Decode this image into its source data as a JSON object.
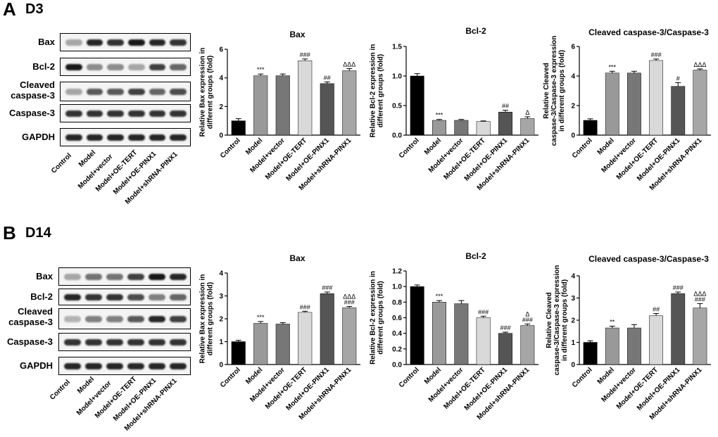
{
  "panels": [
    {
      "letter": "A",
      "day": "D3"
    },
    {
      "letter": "B",
      "day": "D14"
    }
  ],
  "blots": [
    {
      "rows": [
        "Bax",
        "Bcl-2",
        "Cleaved caspase-3",
        "Caspase-3",
        "GAPDH"
      ],
      "lanes": [
        "Control",
        "Model",
        "Model+vector",
        "Model+OE-TERT",
        "Model+OE-PINX1",
        "Model+shRNA-PINX1"
      ],
      "intensity": [
        [
          0.35,
          0.85,
          0.8,
          0.9,
          0.85,
          0.8
        ],
        [
          0.9,
          0.45,
          0.45,
          0.35,
          0.75,
          0.6
        ],
        [
          0.35,
          0.65,
          0.65,
          0.75,
          0.6,
          0.7
        ],
        [
          0.8,
          0.8,
          0.8,
          0.8,
          0.8,
          0.8
        ],
        [
          0.85,
          0.85,
          0.85,
          0.85,
          0.85,
          0.85
        ]
      ]
    },
    {
      "rows": [
        "Bax",
        "Bcl-2",
        "Cleaved caspase-3",
        "Caspase-3",
        "GAPDH"
      ],
      "lanes": [
        "Control",
        "Model",
        "Model+vector",
        "Model+OE-TERT",
        "Model+OE-PINX1",
        "Model+shRNA-PINX1"
      ],
      "intensity": [
        [
          0.35,
          0.55,
          0.55,
          0.75,
          0.9,
          0.85
        ],
        [
          0.85,
          0.8,
          0.8,
          0.7,
          0.5,
          0.6
        ],
        [
          0.3,
          0.5,
          0.5,
          0.65,
          0.85,
          0.75
        ],
        [
          0.8,
          0.8,
          0.8,
          0.8,
          0.8,
          0.8
        ],
        [
          0.85,
          0.85,
          0.85,
          0.85,
          0.85,
          0.85
        ]
      ]
    }
  ],
  "chart_data": [
    {
      "type": "bar",
      "title": "Bax",
      "ylabel": "Relative Bax expression in different groups (fold)",
      "categories": [
        "Control",
        "Model",
        "Model+vector",
        "Model+OE-TERT",
        "Model+OE-PINX1",
        "Model+shRNA-PINX1"
      ],
      "values": [
        1.0,
        4.15,
        4.15,
        5.2,
        3.6,
        4.5
      ],
      "errors": [
        0.15,
        0.12,
        0.12,
        0.12,
        0.12,
        0.15
      ],
      "ylim": [
        0,
        6
      ],
      "yticks": [
        "0",
        "2",
        "4",
        "6"
      ],
      "annotations": [
        "",
        "***",
        "",
        "###",
        "##",
        "ΔΔΔ"
      ],
      "colors": [
        "#000000",
        "#999999",
        "#777777",
        "#d9d9d9",
        "#555555",
        "#a6a6a6"
      ]
    },
    {
      "type": "bar",
      "title": "Bcl-2",
      "ylabel": "Relative Bcl-2 expression in different groups (fold)",
      "categories": [
        "Control",
        "Model",
        "Model+vector",
        "Model+OE-TERT",
        "Model+OE-PINX1",
        "Model+shRNA-PINX1"
      ],
      "values": [
        1.0,
        0.25,
        0.25,
        0.23,
        0.39,
        0.28
      ],
      "errors": [
        0.04,
        0.015,
        0.015,
        0.01,
        0.03,
        0.03
      ],
      "ylim": [
        0,
        1.5
      ],
      "yticks": [
        "0.0",
        "0.5",
        "1.0",
        "1.5"
      ],
      "annotations": [
        "",
        "***",
        "",
        "",
        "##",
        "Δ"
      ],
      "colors": [
        "#000000",
        "#999999",
        "#777777",
        "#d9d9d9",
        "#555555",
        "#a6a6a6"
      ]
    },
    {
      "type": "bar",
      "title": "Cleaved caspase-3/Caspase-3",
      "ylabel": "Relative Cleaved caspase-3/Caspase-3 expression in different groups (fold)",
      "categories": [
        "Control",
        "Model",
        "Model+vector",
        "Model+OE-TERT",
        "Model+OE-PINX1",
        "Model+shRNA-PINX1"
      ],
      "values": [
        1.0,
        4.2,
        4.2,
        5.05,
        3.3,
        4.4
      ],
      "errors": [
        0.1,
        0.12,
        0.12,
        0.1,
        0.25,
        0.08
      ],
      "ylim": [
        0,
        6
      ],
      "yticks": [
        "0",
        "2",
        "4",
        "6"
      ],
      "annotations": [
        "",
        "***",
        "",
        "###",
        "#",
        "ΔΔΔ"
      ],
      "colors": [
        "#000000",
        "#999999",
        "#777777",
        "#d9d9d9",
        "#555555",
        "#a6a6a6"
      ]
    },
    {
      "type": "bar",
      "title": "Bax",
      "ylabel": "Relative Bax expression in different groups (fold)",
      "categories": [
        "Control",
        "Model",
        "Model+vector",
        "Model+OE-TERT",
        "Model+OE-PINX1",
        "Model+shRNA-PINX1"
      ],
      "values": [
        1.0,
        1.8,
        1.77,
        2.28,
        3.1,
        2.48
      ],
      "errors": [
        0.06,
        0.08,
        0.06,
        0.05,
        0.07,
        0.06
      ],
      "ylim": [
        0,
        4
      ],
      "yticks": [
        "0",
        "1",
        "2",
        "3",
        "4"
      ],
      "annotations": [
        "",
        "***",
        "",
        "###",
        "###",
        "ΔΔΔ\n###"
      ],
      "colors": [
        "#000000",
        "#999999",
        "#777777",
        "#d9d9d9",
        "#555555",
        "#a6a6a6"
      ]
    },
    {
      "type": "bar",
      "title": "Bcl-2",
      "ylabel": "Relative Bcl-2 expression in different groups (fold)",
      "categories": [
        "Control",
        "Model",
        "Model+vector",
        "Model+OE-TERT",
        "Model+OE-PINX1",
        "Model+shRNA-PINX1"
      ],
      "values": [
        1.0,
        0.8,
        0.78,
        0.6,
        0.4,
        0.5
      ],
      "errors": [
        0.02,
        0.02,
        0.04,
        0.02,
        0.015,
        0.02
      ],
      "ylim": [
        0,
        1.2
      ],
      "yticks": [
        "0.0",
        "0.2",
        "0.4",
        "0.6",
        "0.8",
        "1.0",
        "1.2"
      ],
      "annotations": [
        "",
        "***",
        "",
        "###",
        "###",
        "Δ\n###"
      ],
      "colors": [
        "#000000",
        "#999999",
        "#777777",
        "#d9d9d9",
        "#555555",
        "#a6a6a6"
      ]
    },
    {
      "type": "bar",
      "title": "Cleaved caspase-3/Caspase-3",
      "ylabel": "Relative Cleaved caspase-3/Caspase-3 expression in different groups (fold)",
      "categories": [
        "Control",
        "Model",
        "Model+vector",
        "Model+OE-TERT",
        "Model+OE-PINX1",
        "Model+shRNA-PINX1"
      ],
      "values": [
        1.0,
        1.65,
        1.65,
        2.2,
        3.2,
        2.55
      ],
      "errors": [
        0.07,
        0.08,
        0.15,
        0.1,
        0.07,
        0.2
      ],
      "ylim": [
        0,
        4
      ],
      "yticks": [
        "0",
        "1",
        "2",
        "3",
        "4"
      ],
      "annotations": [
        "",
        "**",
        "",
        "##",
        "###",
        "ΔΔΔ\n###"
      ],
      "colors": [
        "#000000",
        "#999999",
        "#777777",
        "#d9d9d9",
        "#555555",
        "#a6a6a6"
      ]
    }
  ]
}
